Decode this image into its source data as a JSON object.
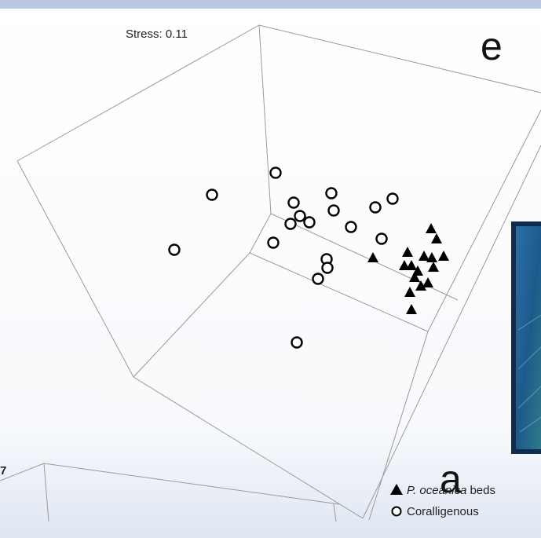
{
  "figure": {
    "stress": "Stress: 0.11",
    "panel_e": "e",
    "panel_a": "a",
    "panel_a_tick": "7",
    "legend": [
      {
        "italic": "P. oceanica",
        "text": "beds"
      },
      {
        "text": "Coralligenous"
      }
    ]
  }
}
